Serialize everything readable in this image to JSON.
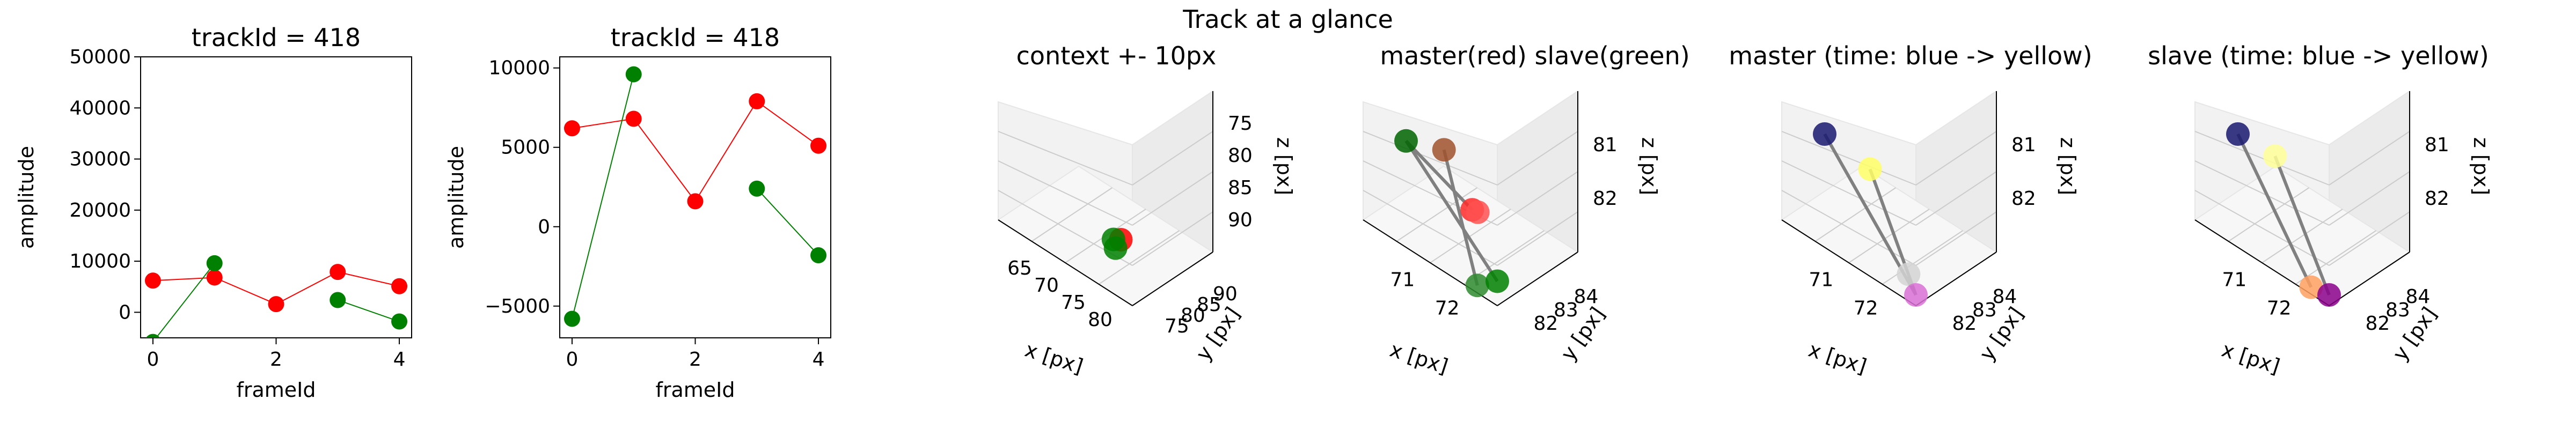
{
  "figure": {
    "suptitle": "Track at a glance"
  },
  "colors": {
    "master": "#ff0000",
    "slave": "#008000",
    "line": "#808080",
    "grid": "#cccccc"
  },
  "chart_data": [
    {
      "type": "scatter",
      "title": "trackId = 418",
      "xlabel": "frameId",
      "ylabel": "amplitude",
      "xlim": [
        -0.2,
        4.2
      ],
      "ylim": [
        -5000,
        50000
      ],
      "xticks": [
        "0",
        "2",
        "4"
      ],
      "yticks": [
        "0",
        "10000",
        "20000",
        "30000",
        "40000",
        "50000"
      ],
      "series": [
        {
          "color": "#ff0000",
          "x": [
            0,
            1,
            2,
            3,
            4
          ],
          "y": [
            6200,
            6800,
            1600,
            7900,
            5100
          ]
        },
        {
          "color": "#008000",
          "x": [
            0,
            1
          ],
          "y": [
            -5800,
            9600
          ]
        },
        {
          "color": "#008000",
          "x": [
            3,
            4
          ],
          "y": [
            2400,
            -1800
          ]
        }
      ]
    },
    {
      "type": "scatter",
      "title": "trackId = 418",
      "xlabel": "frameId",
      "ylabel": "amplitude",
      "xlim": [
        -0.2,
        4.2
      ],
      "ylim": [
        -7000,
        10700
      ],
      "xticks": [
        "0",
        "2",
        "4"
      ],
      "yticks": [
        "−5000",
        "0",
        "5000",
        "10000"
      ],
      "series": [
        {
          "color": "#ff0000",
          "x": [
            0,
            1,
            2,
            3,
            4
          ],
          "y": [
            6200,
            6800,
            1600,
            7900,
            5100
          ]
        },
        {
          "color": "#008000",
          "x": [
            0,
            1
          ],
          "y": [
            -5800,
            9600
          ]
        },
        {
          "color": "#008000",
          "x": [
            3,
            4
          ],
          "y": [
            2400,
            -1800
          ]
        }
      ]
    },
    {
      "type": "scatter",
      "title": "context +- 10px",
      "xlabel": "x [px]",
      "ylabel": "y [px]",
      "zlabel": "z [px]",
      "xticks": [
        "65",
        "70",
        "75",
        "80"
      ],
      "yticks": [
        "75",
        "80",
        "85",
        "90"
      ],
      "zticks": [
        "75",
        "80",
        "85",
        "90"
      ],
      "points": [
        {
          "color": "#ff0000",
          "x": 72.2,
          "y": 82.4,
          "z": 81.6
        },
        {
          "color": "#008000",
          "x": 71.3,
          "y": 82.6,
          "z": 81.5
        },
        {
          "color": "#008000",
          "x": 71.8,
          "y": 82.1,
          "z": 80.9
        }
      ]
    },
    {
      "type": "scatter",
      "title": "master(red) slave(green)",
      "xlabel": "x [px]",
      "ylabel": "y [px]",
      "zlabel": "z [px]",
      "xticks": [
        "71",
        "72"
      ],
      "yticks": [
        "82",
        "83",
        "84"
      ],
      "zticks": [
        "81",
        "82"
      ],
      "points": [
        {
          "color": "#006400",
          "x": 70.9,
          "y": 82.0,
          "z": 82.0
        },
        {
          "color": "#a0522d",
          "x": 71.6,
          "y": 82.6,
          "z": 82.1
        },
        {
          "color": "#ff2a2a",
          "x": 72.1,
          "y": 83.1,
          "z": 81.4
        },
        {
          "color": "#ff5050",
          "x": 72.2,
          "y": 83.2,
          "z": 81.4
        },
        {
          "color": "#2e8b2e",
          "x": 72.3,
          "y": 82.9,
          "z": 80.3
        },
        {
          "color": "#008000",
          "x": 72.6,
          "y": 83.4,
          "z": 80.5
        }
      ],
      "lines": [
        [
          0,
          2
        ],
        [
          1,
          4
        ],
        [
          0,
          5
        ]
      ]
    },
    {
      "type": "scatter",
      "title": "master (time: blue -> yellow)",
      "xlabel": "x [px]",
      "ylabel": "y [px]",
      "zlabel": "z [px]",
      "xticks": [
        "71",
        "72"
      ],
      "yticks": [
        "82",
        "83",
        "84"
      ],
      "zticks": [
        "81",
        "82"
      ],
      "points": [
        {
          "color": "#191970",
          "x": 70.9,
          "y": 82.0,
          "z": 82.1
        },
        {
          "color": "#ffff66",
          "x": 71.6,
          "y": 82.4,
          "z": 82.0
        },
        {
          "color": "#d3d3d3",
          "x": 72.1,
          "y": 83.0,
          "z": 81.5
        },
        {
          "color": "#da70d6",
          "x": 72.2,
          "y": 83.1,
          "z": 81.4
        }
      ],
      "lines": [
        [
          0,
          3
        ],
        [
          1,
          3
        ]
      ]
    },
    {
      "type": "scatter",
      "title": "slave (time: blue -> yellow)",
      "xlabel": "x [px]",
      "ylabel": "y [px]",
      "zlabel": "z [px]",
      "xticks": [
        "71",
        "72"
      ],
      "yticks": [
        "82",
        "83",
        "84"
      ],
      "zticks": [
        "81",
        "82"
      ],
      "points": [
        {
          "color": "#191970",
          "x": 70.9,
          "y": 82.0,
          "z": 82.1
        },
        {
          "color": "#ffff99",
          "x": 71.6,
          "y": 82.4,
          "z": 82.0
        },
        {
          "color": "#ffa060",
          "x": 72.2,
          "y": 83.0,
          "z": 80.5
        },
        {
          "color": "#8b008b",
          "x": 72.5,
          "y": 83.3,
          "z": 80.5
        }
      ],
      "lines": [
        [
          0,
          2
        ],
        [
          1,
          3
        ]
      ]
    }
  ]
}
